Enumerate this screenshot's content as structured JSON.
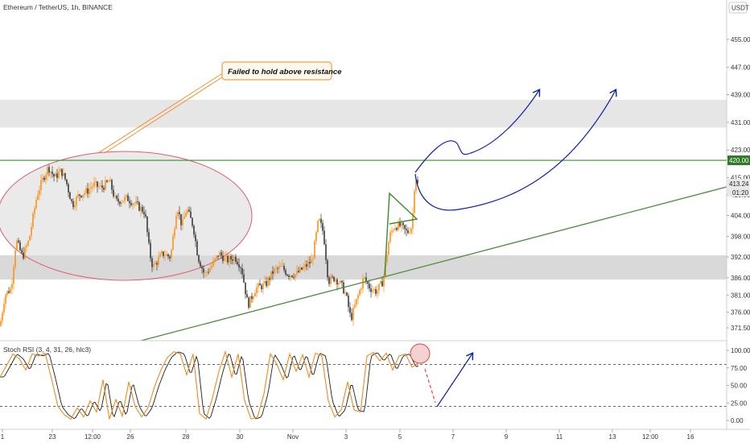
{
  "header": {
    "symbol": "Ethereum / TetherUS, 1h, BINANCE",
    "currency": "USDT"
  },
  "chart_data": {
    "type": "candlestick",
    "price_axis": {
      "ticks": [
        455.0,
        447.0,
        439.0,
        431.0,
        423.0,
        415.0,
        410.0,
        404.0,
        398.0,
        392.0,
        386.0,
        381.0,
        376.0,
        371.5
      ],
      "range": [
        368,
        467
      ]
    },
    "time_axis": {
      "ticks": [
        "1",
        "23",
        "12:00",
        "26",
        "28",
        "30",
        "Nov",
        "3",
        "5",
        "7",
        "9",
        "11",
        "13",
        "12:00",
        "16"
      ]
    },
    "price_labels": {
      "resistance": "420.00",
      "last_price": "413.24",
      "countdown": "01:20"
    },
    "levels": {
      "resistance": 420.0,
      "upper_zone": [
        429.5,
        437.5
      ],
      "lower_zone": [
        385.5,
        392.5
      ]
    },
    "series": [
      {
        "type": "candles",
        "keypoints": [
          [
            0,
            372
          ],
          [
            6,
            381
          ],
          [
            14,
            383
          ],
          [
            20,
            397
          ],
          [
            28,
            392
          ],
          [
            36,
            397
          ],
          [
            46,
            410
          ],
          [
            54,
            415
          ],
          [
            60,
            418
          ],
          [
            68,
            415
          ],
          [
            76,
            417
          ],
          [
            82,
            414
          ],
          [
            90,
            407
          ],
          [
            98,
            410
          ],
          [
            108,
            411
          ],
          [
            116,
            413
          ],
          [
            126,
            412
          ],
          [
            136,
            414
          ],
          [
            144,
            408
          ],
          [
            158,
            409
          ],
          [
            170,
            407
          ],
          [
            180,
            405
          ],
          [
            186,
            393
          ],
          [
            190,
            389
          ],
          [
            202,
            393
          ],
          [
            212,
            392
          ],
          [
            220,
            407
          ],
          [
            226,
            401
          ],
          [
            232,
            406
          ],
          [
            240,
            401
          ],
          [
            246,
            392
          ],
          [
            254,
            387
          ],
          [
            262,
            389
          ],
          [
            272,
            393
          ],
          [
            282,
            391
          ],
          [
            292,
            392
          ],
          [
            300,
            389
          ],
          [
            308,
            378
          ],
          [
            318,
            383
          ],
          [
            330,
            384
          ],
          [
            340,
            388
          ],
          [
            350,
            389
          ],
          [
            358,
            387
          ],
          [
            368,
            387
          ],
          [
            378,
            389
          ],
          [
            388,
            391
          ],
          [
            396,
            403
          ],
          [
            402,
            399
          ],
          [
            408,
            385
          ],
          [
            416,
            386
          ],
          [
            424,
            384
          ],
          [
            430,
            381
          ],
          [
            436,
            374
          ],
          [
            444,
            380
          ],
          [
            452,
            386
          ],
          [
            460,
            383
          ],
          [
            468,
            382
          ],
          [
            476,
            385
          ],
          [
            484,
            398
          ],
          [
            490,
            401
          ],
          [
            498,
            401
          ],
          [
            506,
            399
          ],
          [
            512,
            401
          ],
          [
            516,
            416
          ],
          [
            519,
            413
          ]
        ]
      },
      {
        "type": "stoch_rsi",
        "keypoints": [
          [
            0,
            62
          ],
          [
            8,
            78
          ],
          [
            16,
            95
          ],
          [
            24,
            88
          ],
          [
            32,
            72
          ],
          [
            40,
            95
          ],
          [
            48,
            92
          ],
          [
            56,
            96
          ],
          [
            64,
            60
          ],
          [
            72,
            20
          ],
          [
            80,
            8
          ],
          [
            88,
            2
          ],
          [
            96,
            18
          ],
          [
            104,
            5
          ],
          [
            112,
            28
          ],
          [
            120,
            12
          ],
          [
            128,
            58
          ],
          [
            136,
            2
          ],
          [
            144,
            30
          ],
          [
            152,
            6
          ],
          [
            160,
            55
          ],
          [
            168,
            20
          ],
          [
            176,
            5
          ],
          [
            184,
            18
          ],
          [
            192,
            48
          ],
          [
            200,
            72
          ],
          [
            208,
            90
          ],
          [
            216,
            98
          ],
          [
            224,
            95
          ],
          [
            232,
            65
          ],
          [
            240,
            95
          ],
          [
            248,
            10
          ],
          [
            256,
            2
          ],
          [
            264,
            32
          ],
          [
            272,
            70
          ],
          [
            280,
            98
          ],
          [
            288,
            62
          ],
          [
            296,
            95
          ],
          [
            304,
            28
          ],
          [
            312,
            2
          ],
          [
            320,
            5
          ],
          [
            328,
            38
          ],
          [
            336,
            95
          ],
          [
            344,
            80
          ],
          [
            352,
            58
          ],
          [
            360,
            95
          ],
          [
            368,
            70
          ],
          [
            376,
            94
          ],
          [
            384,
            62
          ],
          [
            392,
            96
          ],
          [
            400,
            92
          ],
          [
            408,
            28
          ],
          [
            416,
            5
          ],
          [
            424,
            15
          ],
          [
            432,
            55
          ],
          [
            440,
            15
          ],
          [
            448,
            12
          ],
          [
            456,
            92
          ],
          [
            464,
            97
          ],
          [
            472,
            85
          ],
          [
            480,
            96
          ],
          [
            488,
            72
          ],
          [
            496,
            92
          ],
          [
            504,
            95
          ],
          [
            512,
            76
          ],
          [
            520,
            82
          ]
        ]
      }
    ],
    "indicator": {
      "label": "Stoch RSI (3, 4, 31, 26, hlc3)",
      "ticks": [
        "100.00",
        "75.00",
        "50.00",
        "25.00",
        "0.00"
      ],
      "levels": [
        80,
        20
      ]
    },
    "annotations": [
      {
        "text": "Failed to hold above resistance"
      }
    ],
    "colors": {
      "up": "#f7931a",
      "down": "#3a3a3a",
      "resistance": "#3c8a2e",
      "trendline": "#4a8c3a",
      "projection": "#0a1fa8",
      "ellipse": "#e05a76",
      "zone": "#cfcfcf",
      "stoch": "#ef8a1e",
      "stoch_signal": "#1d1d1d"
    }
  }
}
